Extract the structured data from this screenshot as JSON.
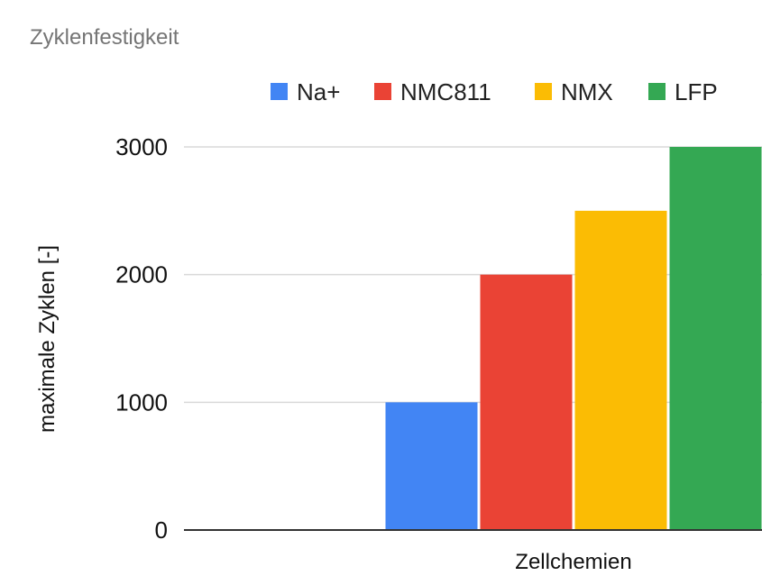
{
  "chart_data": {
    "type": "bar",
    "title": "Zyklenfestigkeit",
    "xlabel": "Zellchemien",
    "ylabel": "maximale Zyklen [-]",
    "categories": [
      ""
    ],
    "series": [
      {
        "name": "Na+",
        "color": "#4285f4",
        "values": [
          1000
        ]
      },
      {
        "name": "NMC811",
        "color": "#ea4335",
        "values": [
          2000
        ]
      },
      {
        "name": "NMX",
        "color": "#fbbc04",
        "values": [
          2500
        ]
      },
      {
        "name": "LFP",
        "color": "#34a853",
        "values": [
          3000
        ]
      }
    ],
    "ylim": [
      0,
      3000
    ],
    "yticks": [
      0,
      1000,
      2000,
      3000
    ],
    "grid": true,
    "legend_position": "top-right"
  }
}
